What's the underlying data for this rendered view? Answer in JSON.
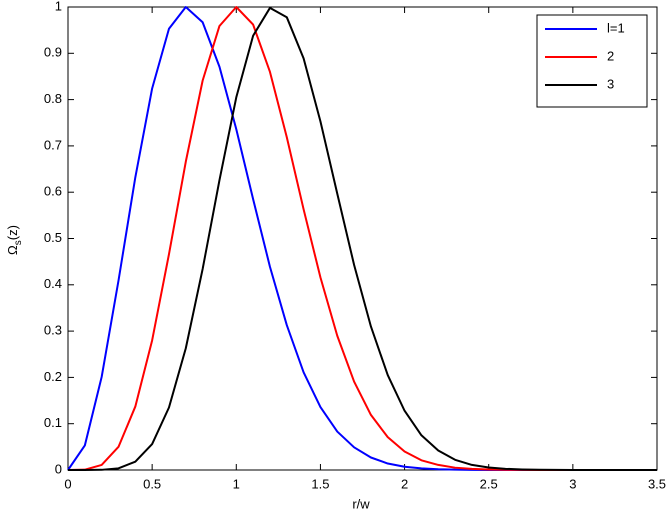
{
  "chart_data": {
    "type": "line",
    "xlabel": "r/w",
    "ylabel": [
      "Ω",
      "s",
      "(z)"
    ],
    "x": [
      0,
      0.1,
      0.2,
      0.3,
      0.4,
      0.5,
      0.6,
      0.7,
      0.8,
      0.9,
      1,
      1.1,
      1.2,
      1.3,
      1.4,
      1.5,
      1.6,
      1.7,
      1.8,
      1.9,
      2,
      2.1,
      2.2,
      2.3,
      2.4,
      2.5,
      2.6,
      2.7,
      2.8,
      2.9,
      3,
      3.1,
      3.2,
      3.3,
      3.4,
      3.5
    ],
    "series": [
      {
        "name": "l=1",
        "color": "#0000ff",
        "values": [
          0,
          0.053,
          0.201,
          0.409,
          0.632,
          0.824,
          0.953,
          1.0,
          0.967,
          0.871,
          0.736,
          0.585,
          0.439,
          0.313,
          0.211,
          0.136,
          0.083,
          0.049,
          0.027,
          0.014,
          0.007,
          0.0035,
          0.0016,
          0.0007,
          0.0003,
          0.0001,
          0,
          0,
          0,
          0,
          0,
          0,
          0,
          0,
          0,
          0
        ]
      },
      {
        "name": "2",
        "color": "#ff0000",
        "values": [
          0,
          0.0007,
          0.011,
          0.05,
          0.137,
          0.28,
          0.466,
          0.666,
          0.841,
          0.959,
          1.0,
          0.962,
          0.86,
          0.719,
          0.563,
          0.416,
          0.29,
          0.191,
          0.119,
          0.071,
          0.04,
          0.021,
          0.011,
          0.005,
          0.0024,
          0.0011,
          0.0005,
          0.0002,
          0.0001,
          0,
          0,
          null,
          null,
          null,
          null,
          null
        ]
      },
      {
        "name": "3",
        "color": "#000000",
        "values": [
          0,
          0,
          0.0004,
          0.0036,
          0.018,
          0.056,
          0.135,
          0.263,
          0.434,
          0.626,
          0.805,
          0.938,
          0.998,
          0.978,
          0.889,
          0.753,
          0.597,
          0.443,
          0.31,
          0.205,
          0.128,
          0.075,
          0.042,
          0.022,
          0.011,
          0.0054,
          0.0025,
          0.0011,
          0.0004,
          0.0002,
          0.0001,
          0,
          0,
          0,
          0,
          0
        ]
      }
    ],
    "xlim": [
      0,
      3.5
    ],
    "xticks": [
      0,
      0.5,
      1,
      1.5,
      2,
      2.5,
      3,
      3.5
    ],
    "ylim": [
      0,
      1
    ],
    "yticks": [
      0,
      0.1,
      0.2,
      0.3,
      0.4,
      0.5,
      0.6,
      0.7,
      0.8,
      0.9,
      1
    ],
    "legend": "top-right",
    "grid": false
  }
}
